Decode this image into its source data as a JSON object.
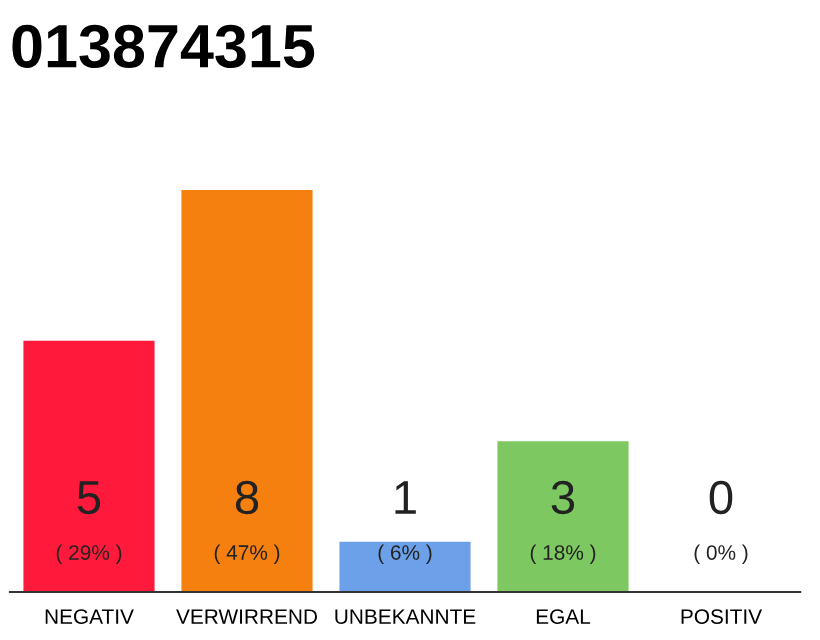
{
  "chart_data": {
    "type": "bar",
    "title": "013874315",
    "categories": [
      "NEGATIV",
      "VERWIRREND",
      "UNBEKANNTE",
      "EGAL",
      "POSITIV"
    ],
    "values": [
      5,
      8,
      1,
      3,
      0
    ],
    "colors": [
      "#ff1a3c",
      "#f5800f",
      "#6ca0e8",
      "#7dc860",
      "#cccccc"
    ],
    "ylim": [
      0,
      8
    ],
    "tick_labels": "x",
    "data_labels": true,
    "grid": false,
    "legend": false,
    "annotations": [
      "( 29% )",
      "( 47% )",
      "( 6% )",
      "( 18% )",
      "( 0% )"
    ]
  }
}
